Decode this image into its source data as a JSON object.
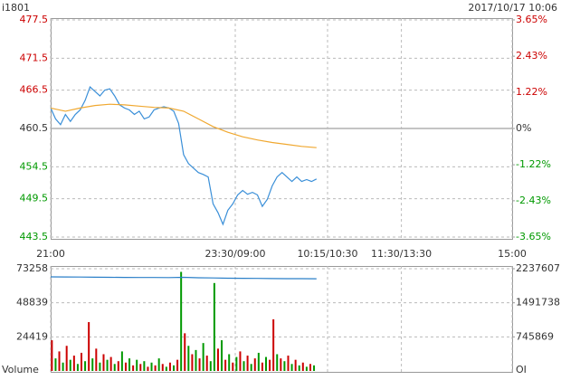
{
  "chart_data": [
    {
      "type": "line",
      "title": "i1801",
      "subtitle": "2017/10/17 10:06",
      "xlim": [
        0,
        375
      ],
      "xticks": [
        {
          "value": 0,
          "label": "21:00"
        },
        {
          "value": 150,
          "label": "23:30/09:00"
        },
        {
          "value": 225,
          "label": "10:15/10:30"
        },
        {
          "value": 285,
          "label": "11:30/13:30"
        },
        {
          "value": 375,
          "label": "15:00"
        }
      ],
      "ylim": [
        443.5,
        477.5
      ],
      "yticks": [
        477.5,
        471.5,
        466.5,
        460.5,
        454.5,
        449.5,
        443.5
      ],
      "y2lim": [
        -3.65,
        3.65
      ],
      "y2ticks": [
        {
          "value": 3.65,
          "label": "3.65%"
        },
        {
          "value": 2.43,
          "label": "2.43%"
        },
        {
          "value": 1.22,
          "label": "1.22%"
        },
        {
          "value": 0,
          "label": "0%"
        },
        {
          "value": -1.22,
          "label": "-1.22%"
        },
        {
          "value": -2.43,
          "label": "-2.43%"
        },
        {
          "value": -3.65,
          "label": "-3.65%"
        }
      ],
      "grid": true,
      "series": [
        {
          "color": "#3a8fd8",
          "x": [
            0,
            4,
            8,
            12,
            16,
            20,
            24,
            28,
            32,
            36,
            40,
            44,
            48,
            52,
            56,
            60,
            64,
            68,
            72,
            76,
            80,
            84,
            88,
            92,
            96,
            100,
            104,
            108,
            112,
            116,
            120,
            124,
            128,
            132,
            136,
            140,
            144,
            148,
            152,
            156,
            160,
            164,
            168,
            172,
            176,
            180,
            184,
            188,
            192,
            196,
            200,
            204,
            208,
            212,
            216
          ],
          "values": [
            463.7,
            462.0,
            461.1,
            462.7,
            461.6,
            462.7,
            463.4,
            464.9,
            467.0,
            466.3,
            465.6,
            466.5,
            466.7,
            465.6,
            464.2,
            463.7,
            463.4,
            462.7,
            463.2,
            462.0,
            462.3,
            463.4,
            463.7,
            463.9,
            463.7,
            463.2,
            461.3,
            456.4,
            455.0,
            454.3,
            453.6,
            453.3,
            452.9,
            448.7,
            447.3,
            445.5,
            447.7,
            448.7,
            450.1,
            450.8,
            450.2,
            450.5,
            450.1,
            448.3,
            449.4,
            451.5,
            452.9,
            453.6,
            452.9,
            452.2,
            452.9,
            452.2,
            452.5,
            452.2,
            452.6
          ]
        },
        {
          "color": "#f0a830",
          "x": [
            0,
            12,
            24,
            36,
            48,
            60,
            72,
            84,
            96,
            108,
            120,
            132,
            144,
            156,
            168,
            180,
            192,
            204,
            216
          ],
          "values": [
            463.7,
            463.2,
            463.7,
            464.1,
            464.3,
            464.2,
            464.0,
            463.8,
            463.7,
            463.2,
            462.0,
            460.8,
            459.9,
            459.2,
            458.7,
            458.3,
            458.0,
            457.7,
            457.5
          ]
        }
      ]
    },
    {
      "type": "bar",
      "xlim": [
        0,
        375
      ],
      "ylim": [
        0,
        73258
      ],
      "yticks": [
        73258,
        48839,
        24419
      ],
      "y_label": "Volume",
      "y2lim": [
        0,
        2237607
      ],
      "y2ticks": [
        2237607,
        1491738,
        745869
      ],
      "y2_label": "OI",
      "x": [
        1,
        4,
        7,
        10,
        13,
        16,
        19,
        22,
        25,
        28,
        31,
        34,
        37,
        40,
        43,
        46,
        49,
        52,
        55,
        58,
        61,
        64,
        67,
        70,
        73,
        76,
        79,
        82,
        85,
        88,
        91,
        94,
        97,
        100,
        103,
        106,
        109,
        112,
        115,
        118,
        121,
        124,
        127,
        130,
        133,
        136,
        139,
        142,
        145,
        148,
        151,
        154,
        157,
        160,
        163,
        166,
        169,
        172,
        175,
        178,
        181,
        184,
        187,
        190,
        193,
        196,
        199,
        202,
        205,
        208,
        211,
        214
      ],
      "values": [
        22000,
        9000,
        14000,
        6000,
        18000,
        8000,
        11000,
        5000,
        13000,
        7000,
        35000,
        9000,
        16000,
        6000,
        12000,
        8000,
        10000,
        5000,
        7000,
        14000,
        6000,
        9000,
        4000,
        8000,
        5000,
        7000,
        3000,
        6000,
        4000,
        9000,
        5000,
        3000,
        6000,
        4000,
        8000,
        71000,
        27000,
        18000,
        12000,
        15000,
        9000,
        20000,
        11000,
        7000,
        63000,
        16000,
        22000,
        8000,
        12000,
        6000,
        10000,
        14000,
        7000,
        11000,
        5000,
        9000,
        13000,
        6000,
        10000,
        8000,
        37000,
        12000,
        9000,
        7000,
        11000,
        5000,
        8000,
        4000,
        6000,
        3000,
        5000,
        4000
      ],
      "colors": [
        "#cc0000",
        "#009900",
        "#cc0000",
        "#009900",
        "#cc0000",
        "#009900",
        "#cc0000",
        "#009900",
        "#cc0000",
        "#009900",
        "#cc0000",
        "#009900",
        "#cc0000",
        "#009900",
        "#cc0000",
        "#009900",
        "#cc0000",
        "#009900",
        "#cc0000",
        "#009900",
        "#cc0000",
        "#009900",
        "#cc0000",
        "#009900",
        "#cc0000",
        "#009900",
        "#cc0000",
        "#009900",
        "#cc0000",
        "#009900",
        "#cc0000",
        "#009900",
        "#cc0000",
        "#009900",
        "#cc0000",
        "#009900",
        "#cc0000",
        "#009900",
        "#cc0000",
        "#009900",
        "#cc0000",
        "#009900",
        "#cc0000",
        "#009900",
        "#009900",
        "#cc0000",
        "#009900",
        "#cc0000",
        "#009900",
        "#cc0000",
        "#009900",
        "#cc0000",
        "#009900",
        "#cc0000",
        "#009900",
        "#cc0000",
        "#009900",
        "#cc0000",
        "#009900",
        "#cc0000",
        "#cc0000",
        "#009900",
        "#cc0000",
        "#009900",
        "#cc0000",
        "#009900",
        "#cc0000",
        "#009900",
        "#cc0000",
        "#009900",
        "#cc0000",
        "#009900"
      ],
      "series": [
        {
          "color": "#2a7fc8",
          "axis": "y2",
          "x": [
            0,
            12,
            24,
            36,
            48,
            60,
            72,
            84,
            96,
            108,
            120,
            132,
            144,
            156,
            168,
            180,
            192,
            204,
            216
          ],
          "values": [
            2060000,
            2058000,
            2055000,
            2052000,
            2050000,
            2048000,
            2046000,
            2045000,
            2044000,
            2050000,
            2040000,
            2035000,
            2030000,
            2028000,
            2025000,
            2022000,
            2020000,
            2019000,
            2018000
          ]
        }
      ]
    }
  ]
}
